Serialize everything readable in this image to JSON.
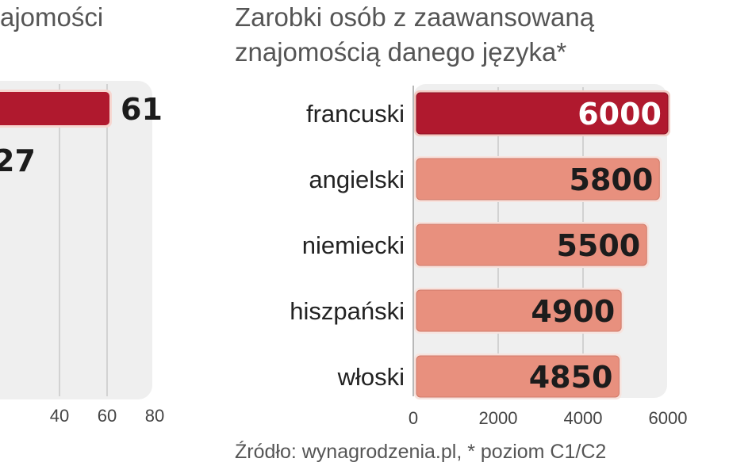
{
  "left_panel": {
    "title_fragment": "ajomości"
  },
  "right_panel": {
    "title": "Zarobki osób z zaawansowaną znajomością danego języka*"
  },
  "source": "Źródło: wynagrodzenia.pl, * poziom C1/C2",
  "colors": {
    "highlight": "#b0192e",
    "bar": "#e8907e",
    "panel_bg": "#efefef",
    "grid": "#c9c9c9"
  },
  "chart_data": [
    {
      "type": "bar",
      "orientation": "horizontal",
      "partial": true,
      "values": [
        61,
        27
      ],
      "highlight_index": 0,
      "xticks": [
        "40",
        "60",
        "80"
      ],
      "xlim": [
        0,
        80
      ],
      "grid": true
    },
    {
      "type": "bar",
      "orientation": "horizontal",
      "title": "Zarobki osób z zaawansowaną znajomością danego języka*",
      "categories": [
        "francuski",
        "angielski",
        "niemiecki",
        "hiszpański",
        "włoski"
      ],
      "values": [
        6000,
        5800,
        5500,
        4900,
        4850
      ],
      "highlight_index": 0,
      "xticks": [
        "0",
        "2000",
        "4000",
        "6000"
      ],
      "xlim": [
        0,
        6000
      ],
      "grid": true
    }
  ]
}
